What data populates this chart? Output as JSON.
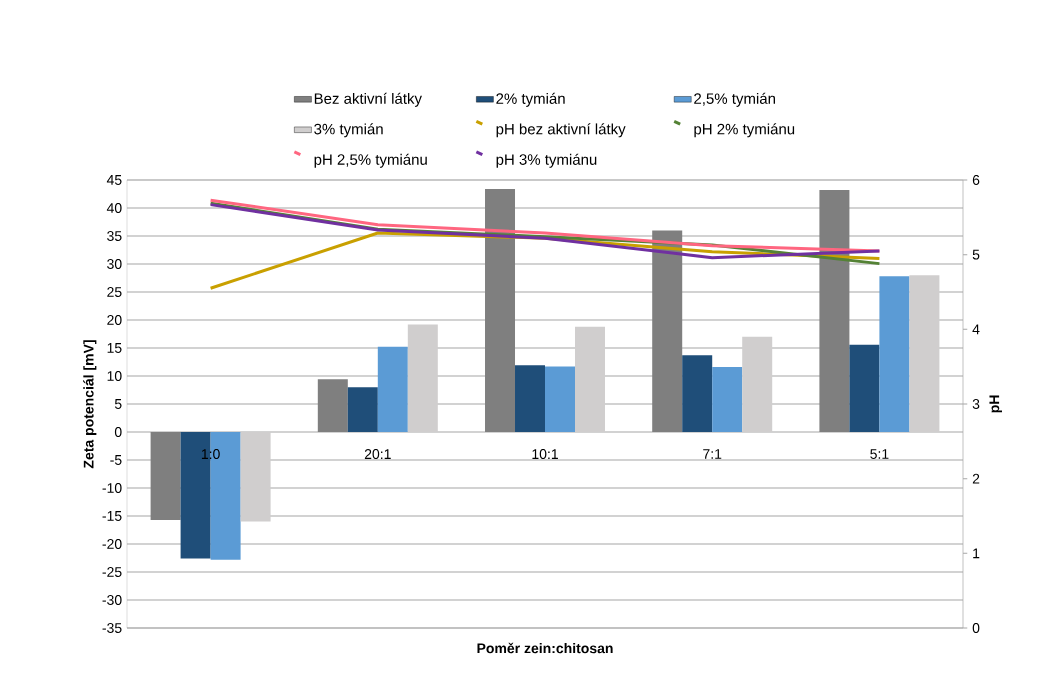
{
  "chart_data": {
    "type": "bar",
    "xlabel": "Poměr zein:chitosan",
    "ylabel": "Zeta potenciál [mV]",
    "y2label": "pH",
    "categories": [
      "1:0",
      "20:1",
      "10:1",
      "7:1",
      "5:1"
    ],
    "series": [
      {
        "name": "Bez aktivní látky",
        "type": "bar",
        "color": "#7f7f7f",
        "values": [
          -15.7,
          9.4,
          43.4,
          36.0,
          43.2
        ]
      },
      {
        "name": "2% tymián",
        "type": "bar",
        "color": "#1f4e79",
        "values": [
          -22.6,
          8.0,
          11.9,
          13.7,
          15.6
        ]
      },
      {
        "name": "2,5% tymián",
        "type": "bar",
        "color": "#5b9bd5",
        "values": [
          -22.8,
          15.2,
          11.7,
          11.6,
          27.8
        ]
      },
      {
        "name": "3% tymián",
        "type": "bar",
        "color": "#d0cece",
        "values": [
          -16.0,
          19.2,
          18.8,
          17.0,
          28.0
        ]
      },
      {
        "name": "pH bez aktivní látky",
        "type": "line",
        "axis": "y2",
        "color": "#c9a000",
        "values": [
          4.55,
          5.29,
          5.22,
          5.04,
          4.95
        ]
      },
      {
        "name": "pH 2% tymiánu",
        "type": "line",
        "axis": "y2",
        "color": "#548235",
        "values": [
          5.69,
          5.34,
          5.24,
          5.13,
          4.88
        ]
      },
      {
        "name": "pH 2,5% tymiánu",
        "type": "line",
        "axis": "y2",
        "color": "#ff6680",
        "values": [
          5.73,
          5.4,
          5.29,
          5.12,
          5.05
        ]
      },
      {
        "name": "pH 3% tymiánu",
        "type": "line",
        "axis": "y2",
        "color": "#7030a0",
        "values": [
          5.67,
          5.33,
          5.22,
          4.96,
          5.05
        ]
      }
    ],
    "ylim": [
      -35,
      45
    ],
    "yticks": [
      -35,
      -30,
      -25,
      -20,
      -15,
      -10,
      -5,
      0,
      5,
      10,
      15,
      20,
      25,
      30,
      35,
      40,
      45
    ],
    "y2lim": [
      0,
      6
    ],
    "y2ticks": [
      0,
      1,
      2,
      3,
      4,
      5,
      6
    ],
    "grid": "y",
    "legend": "top",
    "line_style": "solid"
  }
}
